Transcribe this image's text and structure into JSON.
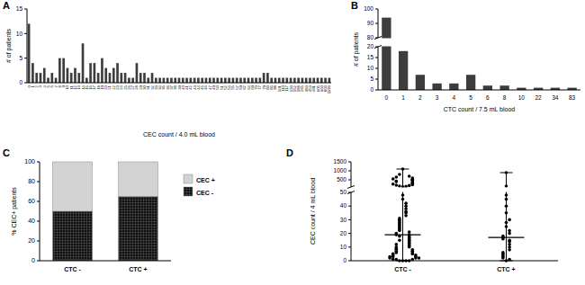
{
  "chart_data": [
    {
      "panel": "A",
      "type": "bar",
      "x_label": "CEC count / 4.0 mL blood",
      "y_label": "# of patients",
      "categories": [
        "0",
        "1",
        "2",
        "3",
        "4",
        "5",
        "6",
        "7",
        "8",
        "9",
        "10",
        "11",
        "12",
        "13",
        "14",
        "15",
        "16",
        "17",
        "18",
        "19",
        "20",
        "21",
        "22",
        "23",
        "24",
        "25",
        "26",
        "27",
        "28",
        "29",
        "30",
        "31",
        "32",
        "33",
        "34",
        "35",
        "36",
        "37",
        "38",
        "39",
        "40",
        "41",
        "42",
        "43",
        "44",
        "45",
        "46",
        "47",
        "49",
        "50",
        "51",
        "52",
        "54",
        "55",
        "57",
        "59",
        "62",
        "64",
        "69",
        "70",
        "77",
        "79",
        "80",
        "86",
        "98",
        "101",
        "110",
        "117",
        "133",
        "152",
        "188",
        "265",
        "383",
        "453",
        "491",
        "605",
        "660",
        "803",
        "1193"
      ],
      "values": [
        12,
        4,
        2,
        2,
        3,
        1,
        2,
        1,
        5,
        5,
        3,
        2,
        3,
        2,
        8,
        1,
        4,
        4,
        2,
        5,
        3,
        2,
        3,
        4,
        2,
        2,
        1,
        1,
        4,
        2,
        2,
        1,
        2,
        1,
        1,
        1,
        1,
        1,
        1,
        1,
        1,
        1,
        1,
        1,
        1,
        1,
        1,
        1,
        1,
        1,
        1,
        1,
        1,
        1,
        1,
        1,
        1,
        1,
        1,
        1,
        1,
        2,
        2,
        1,
        1,
        1,
        1,
        1,
        1,
        1,
        1,
        1,
        1,
        1,
        1,
        1,
        1,
        1,
        1
      ],
      "color": "#3d3d3d",
      "ylim": [
        0,
        15
      ],
      "yticks": [
        0,
        5,
        10,
        15
      ]
    },
    {
      "panel": "B",
      "type": "bar",
      "x_label": "CTC count / 7.5 mL blood",
      "y_label": "# of patients",
      "categories": [
        "0",
        "1",
        "2",
        "3",
        "4",
        "5",
        "6",
        "8",
        "10",
        "22",
        "34",
        "83"
      ],
      "values": [
        94,
        18,
        7,
        3,
        3,
        7,
        2,
        2,
        1,
        1,
        1,
        1
      ],
      "color": "#3d3d3d",
      "ylim": [
        0,
        100
      ],
      "yticks": [
        0,
        5,
        10,
        15,
        20,
        80,
        90,
        100
      ],
      "axis_break": [
        20,
        80
      ]
    },
    {
      "panel": "C",
      "type": "bar",
      "stacked": true,
      "y_label": "% CEC+ patients",
      "categories": [
        "CTC -",
        "CTC +"
      ],
      "series": [
        {
          "name": "CEC -",
          "color": "#111111",
          "values": [
            50,
            65
          ]
        },
        {
          "name": "CEC +",
          "color": "#d3d3d3",
          "values": [
            50,
            35
          ]
        }
      ],
      "ylim": [
        0,
        100
      ],
      "yticks": [
        0,
        20,
        40,
        60,
        80,
        100
      ],
      "legend": "right"
    },
    {
      "panel": "D",
      "type": "dot",
      "y_label": "CEC count / 4 mL blood",
      "categories": [
        "CTC -",
        "CTC +"
      ],
      "values": [
        [
          0,
          0,
          0,
          0,
          1,
          1,
          1,
          2,
          2,
          2,
          3,
          3,
          3,
          4,
          4,
          5,
          5,
          6,
          6,
          7,
          7,
          8,
          8,
          9,
          10,
          10,
          11,
          12,
          12,
          13,
          14,
          15,
          15,
          16,
          17,
          18,
          18,
          19,
          19,
          20,
          21,
          22,
          23,
          24,
          25,
          26,
          27,
          28,
          29,
          30,
          31,
          33,
          35,
          36,
          38,
          40,
          42,
          45,
          48,
          110,
          130,
          150,
          180,
          200,
          230,
          260,
          300,
          320,
          350,
          400,
          420,
          450,
          480,
          500,
          520,
          550,
          600,
          650,
          700,
          800,
          1100
        ],
        [
          0,
          1,
          2,
          3,
          4,
          5,
          6,
          8,
          10,
          12,
          14,
          15,
          16,
          17,
          18,
          20,
          22,
          25,
          28,
          30,
          35,
          40,
          45,
          48,
          150,
          900
        ]
      ],
      "medians": [
        19,
        17
      ],
      "ranges": [
        [
          0,
          1100
        ],
        [
          0,
          900
        ]
      ],
      "color": "#000000",
      "ylim": [
        0,
        1500
      ],
      "yticks": [
        0,
        10,
        20,
        30,
        40,
        50,
        500,
        1000,
        1500
      ],
      "axis_break": [
        50,
        100
      ]
    }
  ]
}
